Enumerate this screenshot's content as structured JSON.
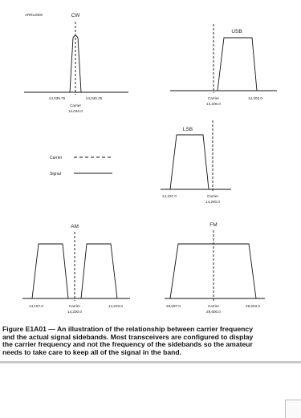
{
  "figure": {
    "id_tag": "ARRL0000",
    "cw": {
      "title": "CW",
      "left": "14,039.75",
      "right": "14,040.25",
      "carrier_label": "Carrier",
      "carrier_freq": "14,040.0"
    },
    "usb": {
      "title": "USB",
      "carrier_label": "Carrier",
      "carrier_freq": "14,200.0",
      "right": "14,203.0"
    },
    "legend": {
      "carrier": "Carrier",
      "signal": "Signal"
    },
    "lsb": {
      "title": "LSB",
      "left": "14,197.0",
      "carrier_label": "Carrier",
      "carrier_freq": "14,200.0"
    },
    "am": {
      "title": "AM",
      "left": "14,197.0",
      "carrier_label": "Carrier",
      "carrier_freq": "14,200.0",
      "right": "14,203.0"
    },
    "fm": {
      "title": "FM",
      "left": "29,597.0",
      "carrier_label": "Carrier",
      "carrier_freq": "29,600.0",
      "right": "29,603.0"
    }
  },
  "caption": {
    "lines": [
      "Figure E1A01 — An illustration of the relationship between carrier frequency",
      "and the actual signal sidebands. Most transceivers are configured to display",
      "the carrier frequency and not the frequency of the sidebands so the amateur",
      "needs to take care to keep all of the signal in the band."
    ]
  }
}
